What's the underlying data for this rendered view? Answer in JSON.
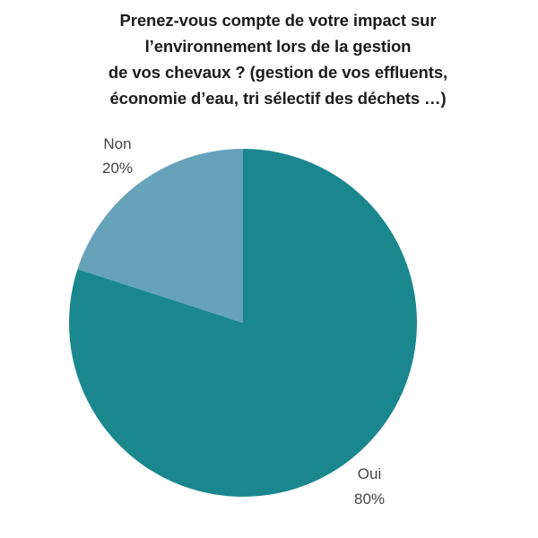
{
  "chart_data": {
    "type": "pie",
    "title_lines": [
      "Prenez-vous compte de votre impact sur",
      "l’environnement lors de la gestion",
      "de vos chevaux ? (gestion de vos effluents,",
      "économie d’eau, tri sélectif des déchets …)"
    ],
    "categories": [
      "Oui",
      "Non"
    ],
    "values": [
      80,
      20
    ],
    "value_labels": [
      "80%",
      "20%"
    ],
    "colors": [
      "#1a878f",
      "#67a2bb"
    ],
    "start": "12 o'clock",
    "direction": "clockwise",
    "legend": "none"
  }
}
